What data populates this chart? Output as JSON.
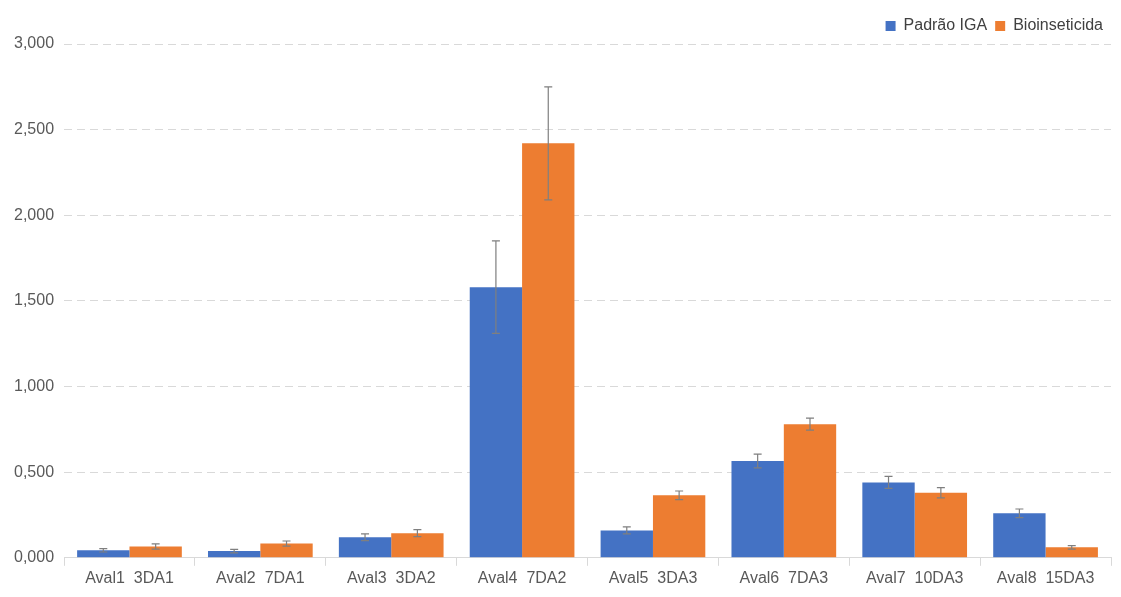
{
  "chart_data": {
    "type": "bar",
    "categories": [
      "Aval1  3DA1",
      "Aval2  7DA1",
      "Aval3  3DA2",
      "Aval4  7DA2",
      "Aval5  3DA3",
      "Aval6  7DA3",
      "Aval7  10DA3",
      "Aval8  15DA3"
    ],
    "series": [
      {
        "name": "Padrão IGA",
        "color": "#4472c4",
        "values": [
          0.044,
          0.039,
          0.12,
          1.58,
          0.16,
          0.565,
          0.44,
          0.26
        ],
        "errors": [
          0.01,
          0.01,
          0.02,
          0.27,
          0.02,
          0.04,
          0.035,
          0.025
        ]
      },
      {
        "name": "Bioinseticida",
        "color": "#ed7d31",
        "values": [
          0.066,
          0.083,
          0.144,
          2.42,
          0.365,
          0.78,
          0.38,
          0.061
        ],
        "errors": [
          0.015,
          0.015,
          0.02,
          0.33,
          0.025,
          0.035,
          0.03,
          0.01
        ]
      }
    ],
    "ylim": [
      0,
      3
    ],
    "yticks": [
      {
        "value": 0,
        "label": "0,000"
      },
      {
        "value": 0.5,
        "label": "0,500"
      },
      {
        "value": 1,
        "label": "1,000"
      },
      {
        "value": 1.5,
        "label": "1,500"
      },
      {
        "value": 2,
        "label": "2,000"
      },
      {
        "value": 2.5,
        "label": "2,500"
      },
      {
        "value": 3,
        "label": "3,000"
      }
    ],
    "grid": "y",
    "legend": "top right"
  }
}
